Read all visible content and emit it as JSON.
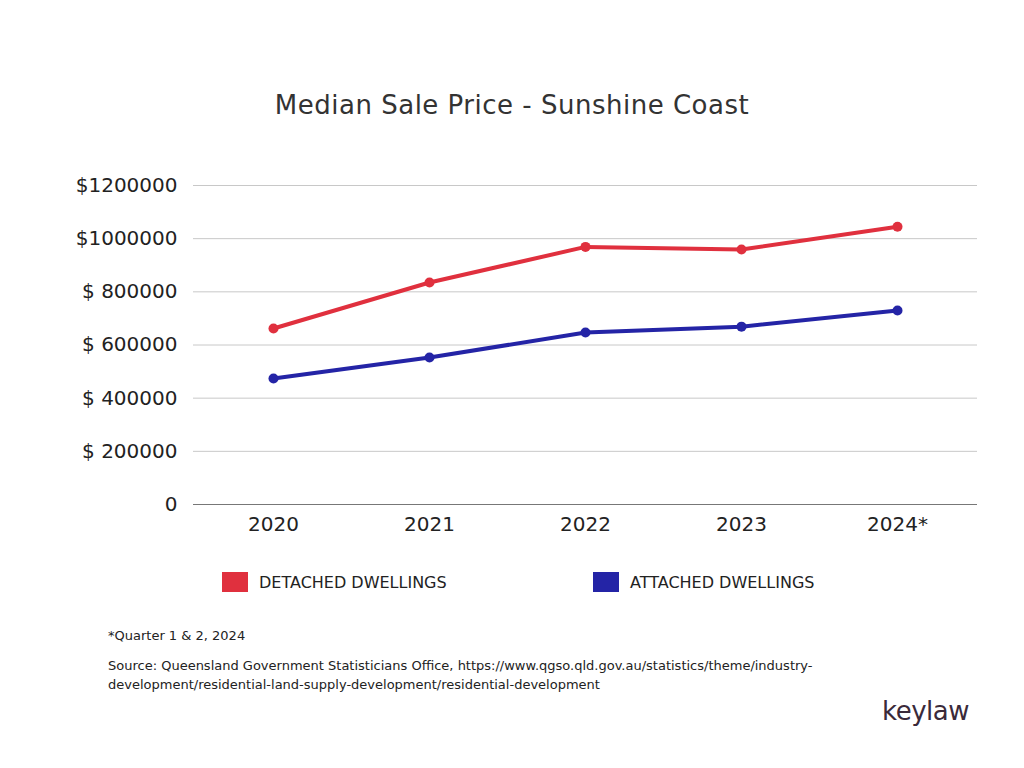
{
  "chart_data": {
    "type": "line",
    "title": "Median Sale Price - Sunshine Coast",
    "categories": [
      "2020",
      "2021",
      "2022",
      "2023",
      "2024*"
    ],
    "series": [
      {
        "name": "DETACHED DWELLINGS",
        "color": "#e0303e",
        "values": [
          662000,
          835000,
          969000,
          959000,
          1045000
        ]
      },
      {
        "name": "ATTACHED DWELLINGS",
        "color": "#2424a6",
        "values": [
          474000,
          553000,
          647000,
          669000,
          730000
        ]
      }
    ],
    "ylim": [
      0,
      1200000
    ],
    "yticks": [
      0,
      {
        "value": 200000,
        "label": "$ 200000"
      },
      {
        "value": 400000,
        "label": "$ 400000"
      },
      {
        "value": 600000,
        "label": "$ 600000"
      },
      {
        "value": 800000,
        "label": "$ 800000"
      },
      {
        "value": 1000000,
        "label": "$1000000"
      },
      {
        "value": 1200000,
        "label": "$1200000"
      }
    ],
    "grid": true,
    "legend": "bottom",
    "marker": "circle",
    "line_style": "solid",
    "note": "*Quarter 1 & 2, 2024",
    "source": "Source: Queensland Government Statisticians Office, https://www.qgso.qld.gov.au/statistics/theme/industry-development/residential-land-supply-development/residential-development",
    "brand": "keylaw"
  }
}
